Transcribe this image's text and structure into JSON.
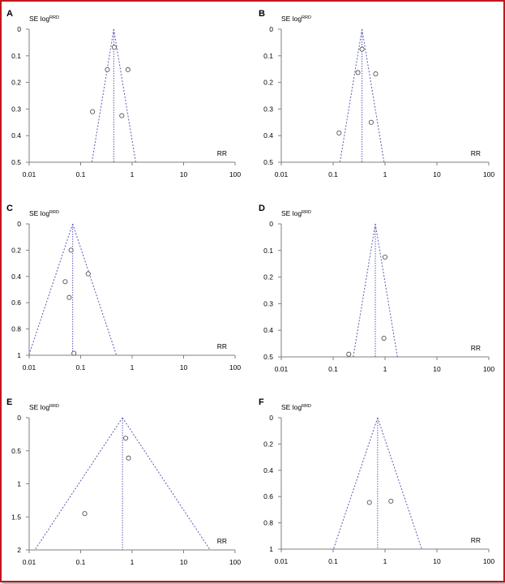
{
  "chart_data": [
    {
      "panel": "A",
      "type": "scatter",
      "ylabel": "SE log",
      "ylabel_sup": "RRD",
      "xlabel": "RR",
      "x_scale": "log",
      "xlim": [
        0.01,
        100
      ],
      "ylim": [
        0,
        0.5
      ],
      "y_reversed": true,
      "x_ticks": [
        "0.01",
        "0.1",
        "1",
        "10",
        "100"
      ],
      "y_ticks": [
        "0",
        "0.1",
        "0.2",
        "0.3",
        "0.4",
        "0.5"
      ],
      "y_tick_values": [
        0,
        0.1,
        0.2,
        0.3,
        0.4,
        0.5
      ],
      "pooled_rr": 0.44,
      "funnel_bottom": 0.5,
      "points": [
        {
          "x": 0.45,
          "y": 0.068
        },
        {
          "x": 0.33,
          "y": 0.152
        },
        {
          "x": 0.83,
          "y": 0.152
        },
        {
          "x": 0.17,
          "y": 0.31
        },
        {
          "x": 0.63,
          "y": 0.325
        }
      ]
    },
    {
      "panel": "B",
      "type": "scatter",
      "ylabel": "SE log",
      "ylabel_sup": "RRD",
      "xlabel": "RR",
      "x_scale": "log",
      "xlim": [
        0.01,
        100
      ],
      "ylim": [
        0,
        0.5
      ],
      "y_reversed": true,
      "x_ticks": [
        "0.01",
        "0.1",
        "1",
        "10",
        "100"
      ],
      "y_ticks": [
        "0",
        "0.1",
        "0.2",
        "0.3",
        "0.4",
        "0.5"
      ],
      "y_tick_values": [
        0,
        0.1,
        0.2,
        0.3,
        0.4,
        0.5
      ],
      "pooled_rr": 0.36,
      "funnel_bottom": 0.5,
      "points": [
        {
          "x": 0.36,
          "y": 0.075
        },
        {
          "x": 0.3,
          "y": 0.163
        },
        {
          "x": 0.66,
          "y": 0.168
        },
        {
          "x": 0.13,
          "y": 0.39
        },
        {
          "x": 0.54,
          "y": 0.35
        }
      ]
    },
    {
      "panel": "C",
      "type": "scatter",
      "ylabel": "SE log",
      "ylabel_sup": "RRD",
      "xlabel": "RR",
      "x_scale": "log",
      "xlim": [
        0.01,
        100
      ],
      "ylim": [
        0,
        1
      ],
      "y_reversed": true,
      "x_ticks": [
        "0.01",
        "0.1",
        "1",
        "10",
        "100"
      ],
      "y_ticks": [
        "0",
        "0.2",
        "0.4",
        "0.6",
        "0.8",
        "1"
      ],
      "y_tick_values": [
        0,
        0.2,
        0.4,
        0.6,
        0.8,
        1
      ],
      "pooled_rr": 0.07,
      "funnel_bottom": 1,
      "points": [
        {
          "x": 0.065,
          "y": 0.2
        },
        {
          "x": 0.14,
          "y": 0.38
        },
        {
          "x": 0.05,
          "y": 0.44
        },
        {
          "x": 0.06,
          "y": 0.56
        },
        {
          "x": 0.074,
          "y": 0.985
        }
      ]
    },
    {
      "panel": "D",
      "type": "scatter",
      "ylabel": "SE log",
      "ylabel_sup": "RRD",
      "xlabel": "RR",
      "x_scale": "log",
      "xlim": [
        0.01,
        100
      ],
      "ylim": [
        0,
        0.5
      ],
      "y_reversed": true,
      "x_ticks": [
        "0.01",
        "0.1",
        "1",
        "10",
        "100"
      ],
      "y_ticks": [
        "0",
        "0.1",
        "0.2",
        "0.3",
        "0.4",
        "0.5"
      ],
      "y_tick_values": [
        0,
        0.1,
        0.2,
        0.3,
        0.4,
        0.5
      ],
      "pooled_rr": 0.65,
      "funnel_bottom": 0.5,
      "points": [
        {
          "x": 1.0,
          "y": 0.125
        },
        {
          "x": 0.95,
          "y": 0.43
        },
        {
          "x": 0.2,
          "y": 0.49
        }
      ]
    },
    {
      "panel": "E",
      "type": "scatter",
      "ylabel": "SE log",
      "ylabel_sup": "RRD",
      "xlabel": "RR",
      "x_scale": "log",
      "xlim": [
        0.01,
        100
      ],
      "ylim": [
        0,
        2
      ],
      "y_reversed": true,
      "x_ticks": [
        "0.01",
        "0.1",
        "1",
        "10",
        "100"
      ],
      "y_ticks": [
        "0",
        "0.5",
        "1",
        "1.5",
        "2"
      ],
      "y_tick_values": [
        0,
        0.5,
        1,
        1.5,
        2
      ],
      "pooled_rr": 0.65,
      "funnel_bottom": 2,
      "points": [
        {
          "x": 0.75,
          "y": 0.31
        },
        {
          "x": 0.85,
          "y": 0.61
        },
        {
          "x": 0.12,
          "y": 1.45
        }
      ]
    },
    {
      "panel": "F",
      "type": "scatter",
      "ylabel": "SE log",
      "ylabel_sup": "RRD",
      "xlabel": "RR",
      "x_scale": "log",
      "xlim": [
        0.01,
        100
      ],
      "ylim": [
        0,
        1
      ],
      "y_reversed": true,
      "x_ticks": [
        "0.01",
        "0.1",
        "1",
        "10",
        "100"
      ],
      "y_ticks": [
        "0",
        "0.2",
        "0.4",
        "0.6",
        "0.8",
        "1"
      ],
      "y_tick_values": [
        0,
        0.2,
        0.4,
        0.6,
        0.8,
        1
      ],
      "pooled_rr": 0.72,
      "funnel_bottom": 1,
      "points": [
        {
          "x": 0.5,
          "y": 0.645
        },
        {
          "x": 1.3,
          "y": 0.635
        }
      ]
    }
  ],
  "colors": {
    "border": "#c0181e",
    "funnel": "#5b5bb8",
    "marker": "#555555",
    "axis": "#7f7f7f"
  }
}
